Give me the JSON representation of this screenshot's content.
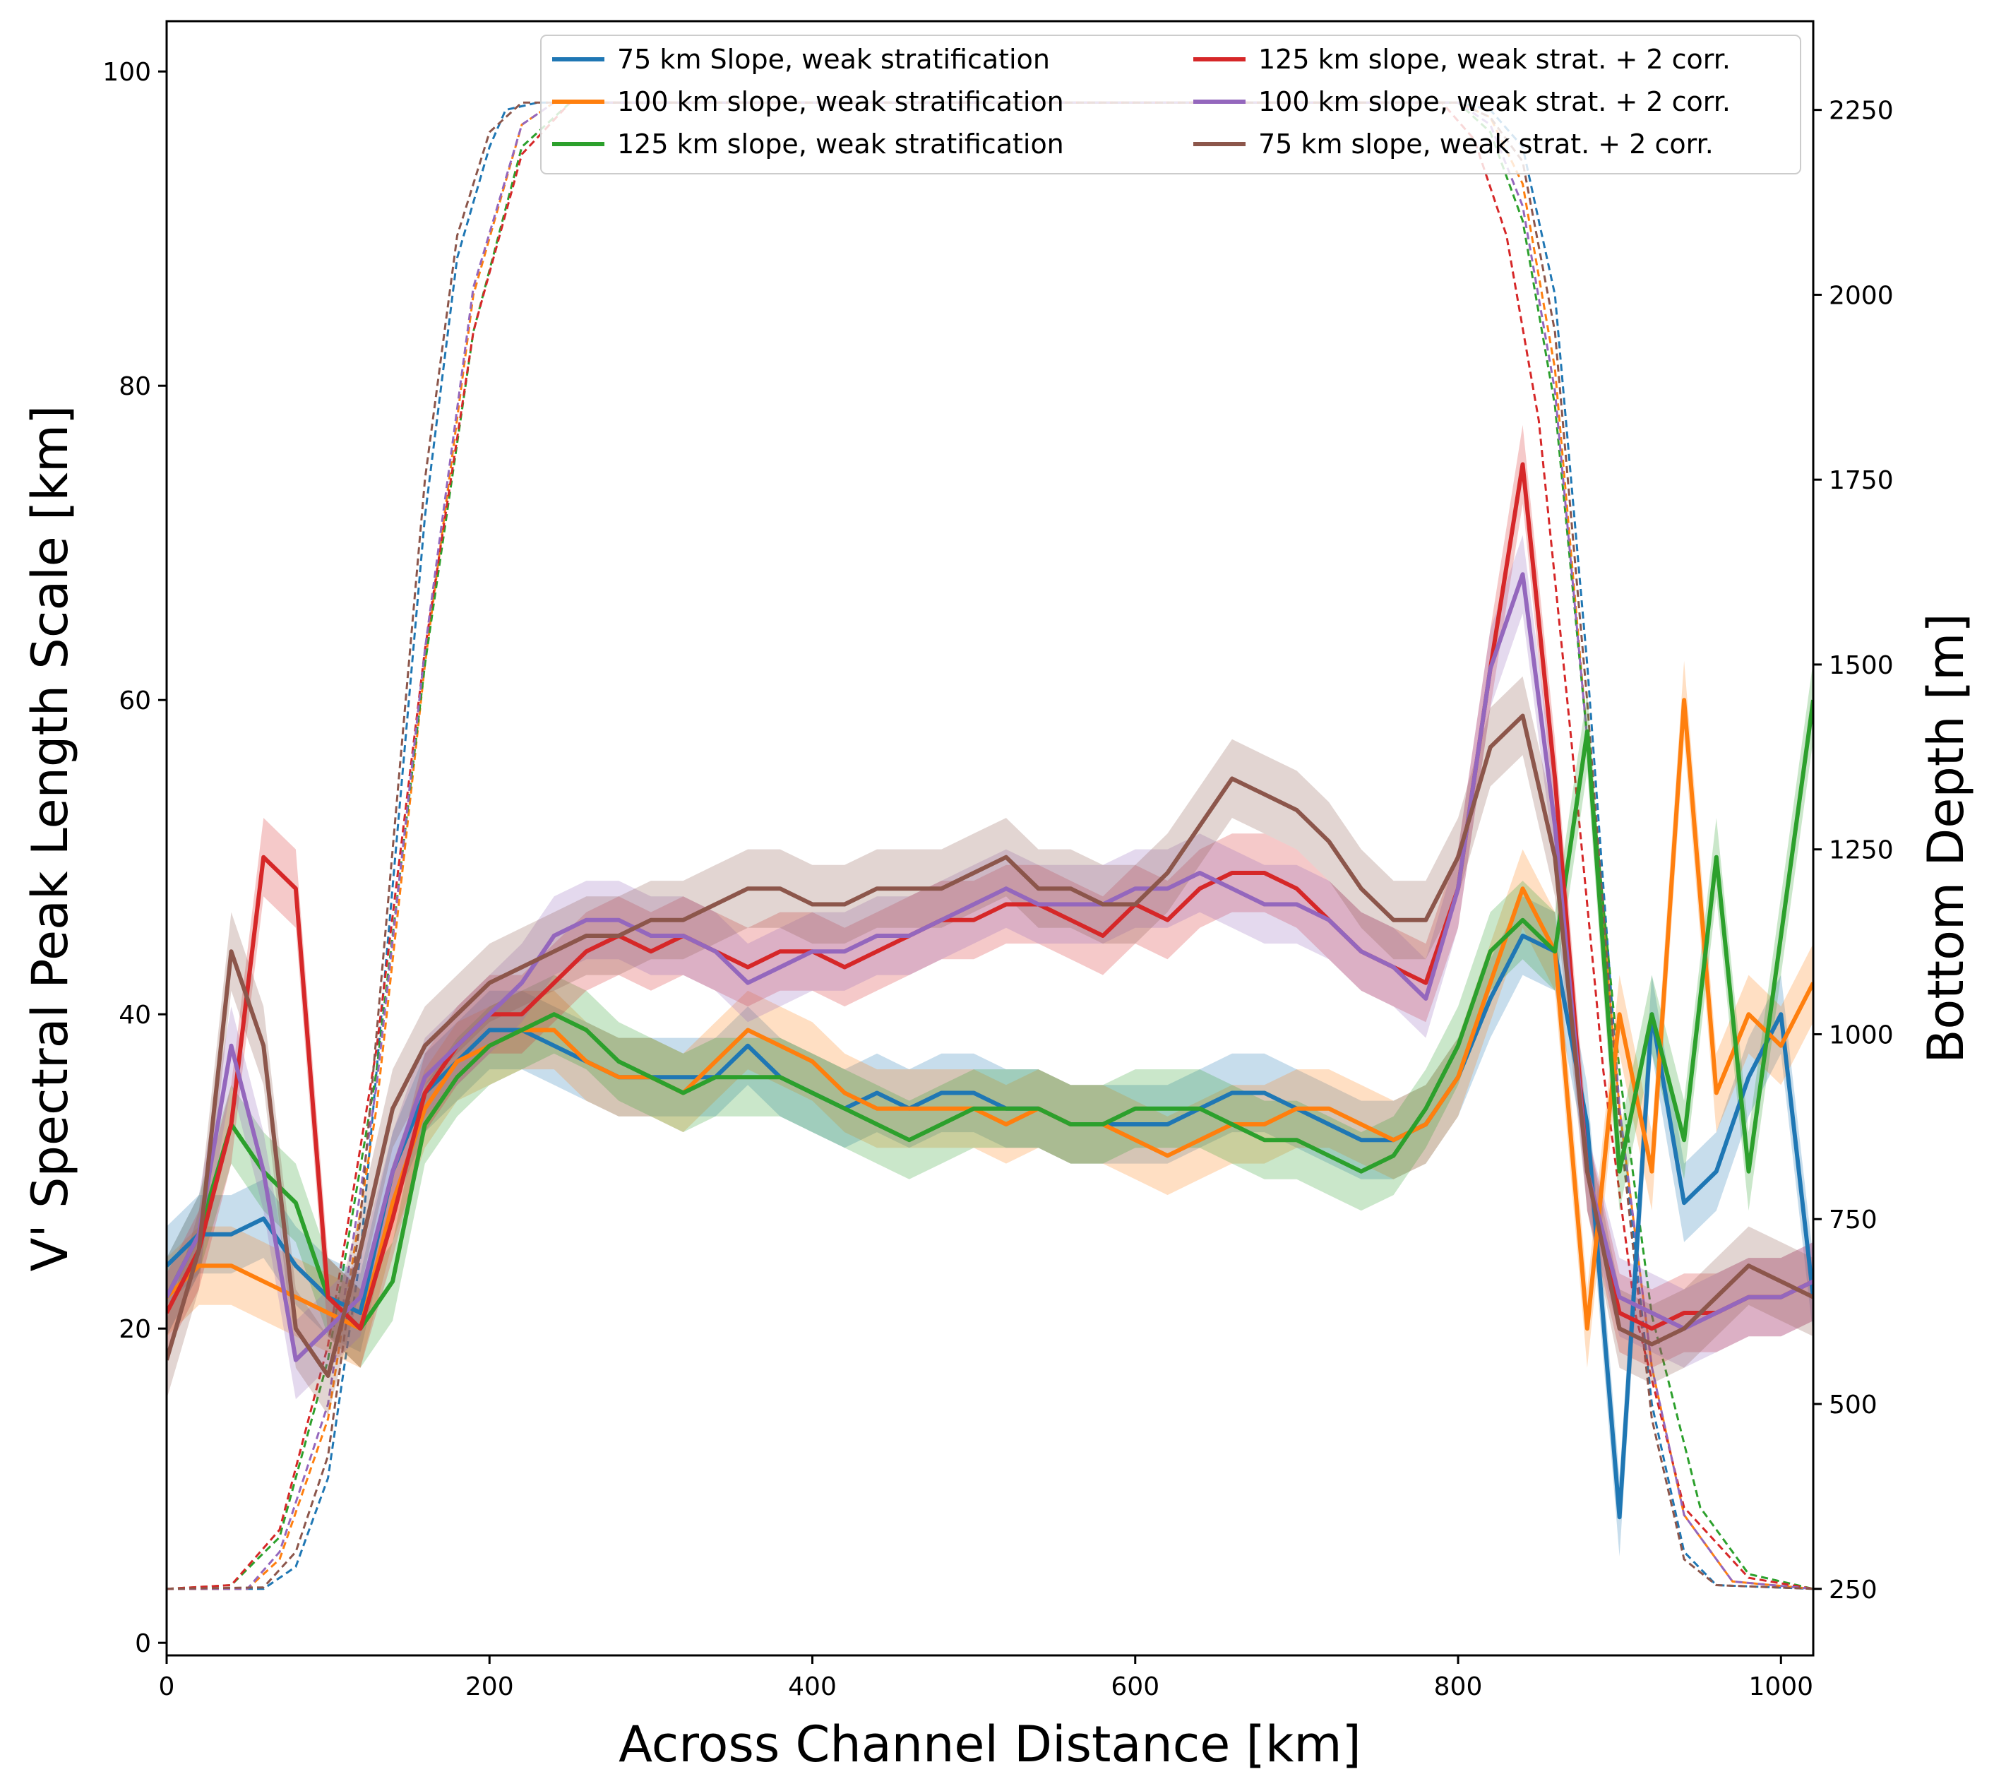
{
  "chart_data": {
    "type": "line",
    "xlabel": "Across Channel Distance [km]",
    "ylabel": "V' Spectral Peak Length Scale [km]",
    "y2label": "Bottom Depth [m]",
    "xlim": [
      0,
      1020
    ],
    "ylim": [
      -0.8,
      103.2
    ],
    "y2lim": [
      160,
      2370
    ],
    "xticks": [
      "0",
      "200",
      "400",
      "600",
      "800",
      "1000"
    ],
    "yticks": [
      "0",
      "20",
      "40",
      "60",
      "80",
      "100"
    ],
    "y2ticks": [
      "250",
      "500",
      "750",
      "1000",
      "1250",
      "1500",
      "1750",
      "2000",
      "2250"
    ],
    "legend": {
      "position": "top-right",
      "entries": [
        "75 km Slope, weak stratification",
        "100 km slope, weak stratification",
        "125 km slope, weak stratification",
        "125 km slope, weak strat. + 2 corr.",
        "100 km slope, weak strat. + 2 corr.",
        "75 km slope, weak strat. + 2 corr."
      ]
    },
    "series": [
      {
        "name": "75 km Slope, weak stratification",
        "color": "#1f77b4",
        "x": [
          0,
          20,
          40,
          60,
          80,
          100,
          120,
          140,
          160,
          180,
          200,
          220,
          240,
          260,
          280,
          300,
          320,
          340,
          360,
          380,
          400,
          420,
          440,
          460,
          480,
          500,
          520,
          540,
          560,
          580,
          600,
          620,
          640,
          660,
          680,
          700,
          720,
          740,
          760,
          780,
          800,
          820,
          840,
          860,
          880,
          900,
          920,
          940,
          960,
          980,
          1000,
          1020
        ],
        "y": [
          24,
          26,
          26,
          27,
          24,
          22,
          21,
          30,
          35,
          37,
          39,
          39,
          38,
          37,
          36,
          36,
          36,
          36,
          38,
          36,
          35,
          34,
          35,
          34,
          35,
          35,
          34,
          34,
          33,
          33,
          33,
          33,
          34,
          35,
          35,
          34,
          33,
          32,
          32,
          33,
          36,
          41,
          45,
          44,
          33,
          8,
          40,
          28,
          30,
          36,
          40,
          22
        ]
      },
      {
        "name": "100 km slope, weak stratification",
        "color": "#ff7f0e",
        "x": [
          0,
          20,
          40,
          60,
          80,
          100,
          120,
          140,
          160,
          180,
          200,
          220,
          240,
          260,
          280,
          300,
          320,
          340,
          360,
          380,
          400,
          420,
          440,
          460,
          480,
          500,
          520,
          540,
          560,
          580,
          600,
          620,
          640,
          660,
          680,
          700,
          720,
          740,
          760,
          780,
          800,
          820,
          840,
          860,
          880,
          900,
          920,
          940,
          960,
          980,
          1000,
          1020
        ],
        "y": [
          22,
          24,
          24,
          23,
          22,
          21,
          20,
          28,
          34,
          37,
          38,
          39,
          39,
          37,
          36,
          36,
          35,
          37,
          39,
          38,
          37,
          35,
          34,
          34,
          34,
          34,
          33,
          34,
          33,
          33,
          32,
          31,
          32,
          33,
          33,
          34,
          34,
          33,
          32,
          33,
          36,
          42,
          48,
          44,
          20,
          40,
          30,
          60,
          35,
          40,
          38,
          42
        ]
      },
      {
        "name": "125 km slope, weak stratification",
        "color": "#2ca02c",
        "x": [
          0,
          20,
          40,
          60,
          80,
          100,
          120,
          140,
          160,
          180,
          200,
          220,
          240,
          260,
          280,
          300,
          320,
          340,
          360,
          380,
          400,
          420,
          440,
          460,
          480,
          500,
          520,
          540,
          560,
          580,
          600,
          620,
          640,
          660,
          680,
          700,
          720,
          740,
          760,
          780,
          800,
          820,
          840,
          860,
          880,
          900,
          920,
          940,
          960,
          980,
          1000,
          1020
        ],
        "y": [
          22,
          26,
          33,
          30,
          28,
          22,
          20,
          23,
          33,
          36,
          38,
          39,
          40,
          39,
          37,
          36,
          35,
          36,
          36,
          36,
          35,
          34,
          33,
          32,
          33,
          34,
          34,
          34,
          33,
          33,
          34,
          34,
          34,
          33,
          32,
          32,
          31,
          30,
          31,
          34,
          38,
          44,
          46,
          44,
          58,
          30,
          40,
          32,
          50,
          30,
          45,
          60
        ]
      },
      {
        "name": "125 km slope, weak strat. + 2 corr.",
        "color": "#d62728",
        "x": [
          0,
          20,
          40,
          60,
          80,
          100,
          120,
          140,
          160,
          180,
          200,
          220,
          240,
          260,
          280,
          300,
          320,
          340,
          360,
          380,
          400,
          420,
          440,
          460,
          480,
          500,
          520,
          540,
          560,
          580,
          600,
          620,
          640,
          660,
          680,
          700,
          720,
          740,
          760,
          780,
          800,
          820,
          840,
          860,
          880,
          900,
          920,
          940,
          960,
          980,
          1000,
          1020
        ],
        "y": [
          21,
          25,
          33,
          50,
          48,
          22,
          20,
          27,
          35,
          38,
          40,
          40,
          42,
          44,
          45,
          44,
          45,
          44,
          43,
          44,
          44,
          43,
          44,
          45,
          46,
          46,
          47,
          47,
          46,
          45,
          47,
          46,
          48,
          49,
          49,
          48,
          46,
          44,
          43,
          42,
          48,
          62,
          75,
          55,
          30,
          21,
          20,
          21,
          21,
          22,
          22,
          23
        ]
      },
      {
        "name": "100 km slope, weak strat. + 2 corr.",
        "color": "#9467bd",
        "x": [
          0,
          20,
          40,
          60,
          80,
          100,
          120,
          140,
          160,
          180,
          200,
          220,
          240,
          260,
          280,
          300,
          320,
          340,
          360,
          380,
          400,
          420,
          440,
          460,
          480,
          500,
          520,
          540,
          560,
          580,
          600,
          620,
          640,
          660,
          680,
          700,
          720,
          740,
          760,
          780,
          800,
          820,
          840,
          860,
          880,
          900,
          920,
          940,
          960,
          980,
          1000,
          1020
        ],
        "y": [
          22,
          26,
          38,
          30,
          18,
          20,
          22,
          30,
          36,
          38,
          40,
          42,
          45,
          46,
          46,
          45,
          45,
          44,
          42,
          43,
          44,
          44,
          45,
          45,
          46,
          47,
          48,
          47,
          47,
          47,
          48,
          48,
          49,
          48,
          47,
          47,
          46,
          44,
          43,
          41,
          48,
          62,
          68,
          52,
          30,
          22,
          21,
          20,
          21,
          22,
          22,
          23
        ]
      },
      {
        "name": "75 km slope, weak strat. + 2 corr.",
        "color": "#8c564b",
        "x": [
          0,
          20,
          40,
          60,
          80,
          100,
          120,
          140,
          160,
          180,
          200,
          220,
          240,
          260,
          280,
          300,
          320,
          340,
          360,
          380,
          400,
          420,
          440,
          460,
          480,
          500,
          520,
          540,
          560,
          580,
          600,
          620,
          640,
          660,
          680,
          700,
          720,
          740,
          760,
          780,
          800,
          820,
          840,
          860,
          880,
          900,
          920,
          940,
          960,
          980,
          1000,
          1020
        ],
        "y": [
          18,
          25,
          44,
          38,
          20,
          17,
          25,
          34,
          38,
          40,
          42,
          43,
          44,
          45,
          45,
          46,
          46,
          47,
          48,
          48,
          47,
          47,
          48,
          48,
          48,
          49,
          50,
          48,
          48,
          47,
          47,
          49,
          52,
          55,
          54,
          53,
          51,
          48,
          46,
          46,
          50,
          57,
          59,
          50,
          30,
          20,
          19,
          20,
          22,
          24,
          23,
          22
        ]
      }
    ],
    "bottom_depth_profiles": [
      {
        "slope_km": 75,
        "color": "#1f77b4",
        "x": [
          0,
          60,
          80,
          100,
          120,
          140,
          160,
          180,
          200,
          210,
          230,
          800,
          820,
          840,
          860,
          880,
          900,
          920,
          940,
          960,
          1020
        ],
        "depth": [
          250,
          250,
          280,
          400,
          700,
          1200,
          1700,
          2050,
          2200,
          2250,
          2260,
          2260,
          2250,
          2200,
          2000,
          1500,
          900,
          500,
          300,
          255,
          250
        ]
      },
      {
        "slope_km": 100,
        "color": "#ff7f0e",
        "x": [
          0,
          50,
          70,
          100,
          130,
          160,
          190,
          220,
          240,
          800,
          820,
          840,
          860,
          880,
          900,
          920,
          940,
          970,
          1020
        ],
        "depth": [
          250,
          250,
          290,
          480,
          900,
          1500,
          2000,
          2230,
          2260,
          2260,
          2240,
          2150,
          1900,
          1400,
          900,
          550,
          350,
          260,
          250
        ]
      },
      {
        "slope_km": 125,
        "color": "#2ca02c",
        "x": [
          0,
          40,
          70,
          100,
          130,
          160,
          190,
          220,
          250,
          800,
          820,
          840,
          860,
          880,
          900,
          920,
          950,
          980,
          1020
        ],
        "depth": [
          250,
          255,
          320,
          560,
          950,
          1500,
          1950,
          2200,
          2260,
          2260,
          2220,
          2100,
          1850,
          1400,
          950,
          620,
          360,
          270,
          250
        ]
      },
      {
        "slope_km": 125,
        "color": "#d62728",
        "x": [
          0,
          40,
          70,
          100,
          130,
          160,
          190,
          220,
          250,
          790,
          810,
          830,
          850,
          870,
          890,
          910,
          940,
          980,
          1020
        ],
        "depth": [
          250,
          255,
          330,
          580,
          980,
          1520,
          1950,
          2190,
          2260,
          2260,
          2210,
          2080,
          1830,
          1400,
          950,
          620,
          360,
          265,
          250
        ]
      },
      {
        "slope_km": 100,
        "color": "#9467bd",
        "x": [
          0,
          50,
          70,
          100,
          130,
          160,
          190,
          220,
          240,
          800,
          820,
          840,
          860,
          880,
          900,
          920,
          940,
          970,
          1020
        ],
        "depth": [
          250,
          250,
          300,
          500,
          930,
          1520,
          2010,
          2230,
          2260,
          2260,
          2230,
          2120,
          1870,
          1400,
          900,
          550,
          350,
          260,
          250
        ]
      },
      {
        "slope_km": 75,
        "color": "#8c564b",
        "x": [
          0,
          60,
          80,
          100,
          120,
          140,
          160,
          180,
          200,
          220,
          800,
          820,
          840,
          860,
          880,
          900,
          920,
          940,
          960,
          1020
        ],
        "depth": [
          250,
          252,
          300,
          430,
          750,
          1250,
          1750,
          2080,
          2220,
          2260,
          2260,
          2240,
          2180,
          1950,
          1450,
          880,
          480,
          290,
          255,
          250
        ]
      }
    ]
  }
}
